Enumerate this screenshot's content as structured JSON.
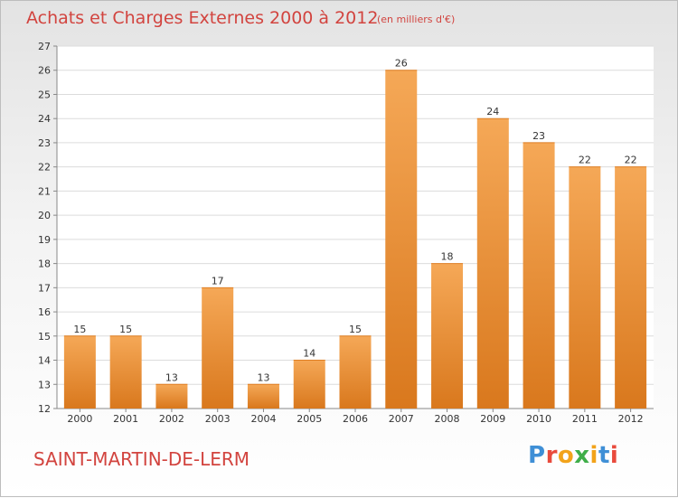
{
  "header": {
    "title": "Achats et Charges Externes 2000 à 2012",
    "subtitle": "(en milliers d'€)"
  },
  "footer": {
    "commune": "SAINT-MARTIN-DE-LERM",
    "logo": "Proxiti",
    "logo_colors": [
      "#3f8fd6",
      "#e94a3c",
      "#f2a31a",
      "#3fae49",
      "#f2a31a",
      "#3f8fd6",
      "#e94a3c"
    ]
  },
  "chart_data": {
    "type": "bar",
    "title": "Achats et Charges Externes 2000 à 2012",
    "subtitle": "(en milliers d'€)",
    "categories": [
      "2000",
      "2001",
      "2002",
      "2003",
      "2004",
      "2005",
      "2006",
      "2007",
      "2008",
      "2009",
      "2010",
      "2011",
      "2012"
    ],
    "values": [
      15,
      15,
      13,
      17,
      13,
      14,
      15,
      26,
      18,
      24,
      23,
      22,
      22
    ],
    "ylim": [
      12,
      27
    ],
    "yticks": [
      12,
      13,
      14,
      15,
      16,
      17,
      18,
      19,
      20,
      21,
      22,
      23,
      24,
      25,
      26,
      27
    ],
    "grid": true,
    "bar_color_top": "#f5a857",
    "bar_color_bottom": "#d9781d"
  }
}
